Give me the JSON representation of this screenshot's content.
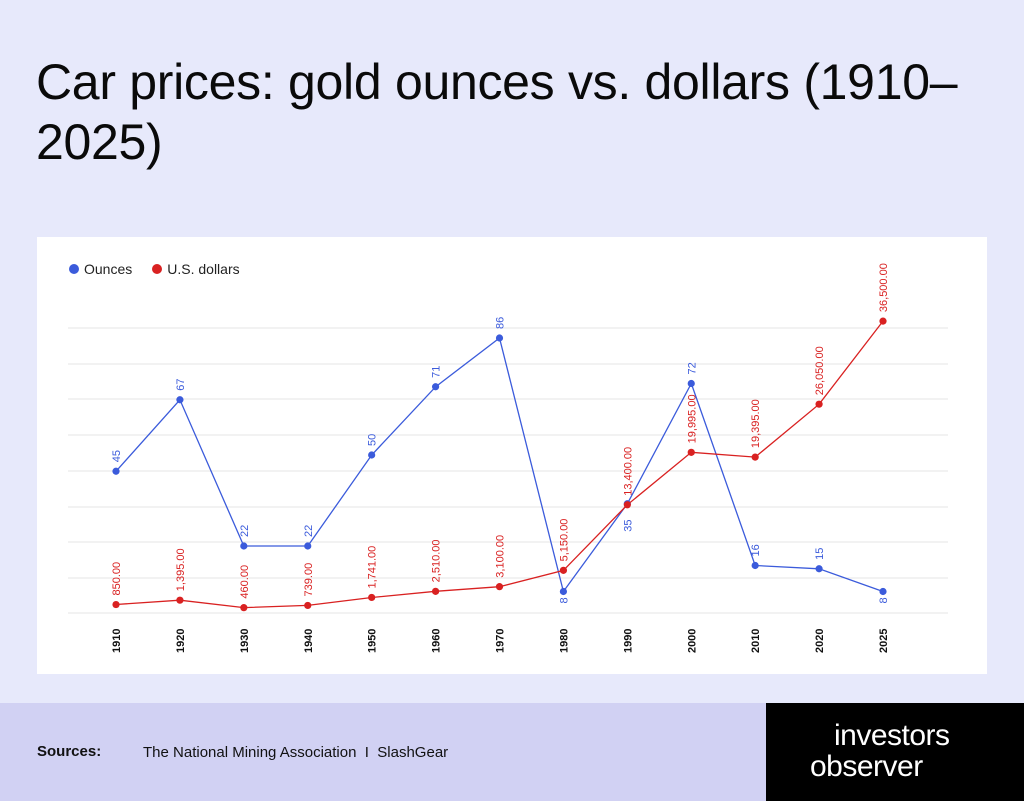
{
  "title": "Car prices: gold ounces vs. dollars (1910–2025)",
  "footer": {
    "sources_label": "Sources:",
    "sources_text": "The National Mining Association  I  SlashGear"
  },
  "brand": {
    "line1": "investors",
    "line2": "observer"
  },
  "colors": {
    "ounces": "#3b5bdb",
    "dollars": "#d92121",
    "grid": "#e4e4e4"
  },
  "chart_data": {
    "type": "line",
    "title": "",
    "legend_position": "top-left",
    "grid": true,
    "categories": [
      "1910",
      "1920",
      "1930",
      "1940",
      "1950",
      "1960",
      "1970",
      "1980",
      "1990",
      "2000",
      "2010",
      "2020",
      "2025"
    ],
    "series": [
      {
        "name": "Ounces",
        "color": "#3b5bdb",
        "values": [
          45,
          67,
          22,
          22,
          50,
          71,
          86,
          8,
          35,
          72,
          16,
          15,
          8
        ],
        "labels": [
          "45",
          "67",
          "22",
          "22",
          "50",
          "71",
          "86",
          "8",
          "35",
          "72",
          "16",
          "15",
          "8"
        ]
      },
      {
        "name": "U.S. dollars",
        "color": "#d92121",
        "values": [
          850,
          1395,
          460,
          739,
          1741,
          2510,
          3100,
          5150,
          13400,
          19995,
          19395,
          26050,
          36500
        ],
        "labels": [
          "850.00",
          "1,395.00",
          "460.00",
          "739.00",
          "1,741.00",
          "2,510.00",
          "3,100.00",
          "5,150.00",
          "13,400.00",
          "19,995.00",
          "19,395.00",
          "26,050.00",
          "36,500.00"
        ]
      }
    ]
  }
}
